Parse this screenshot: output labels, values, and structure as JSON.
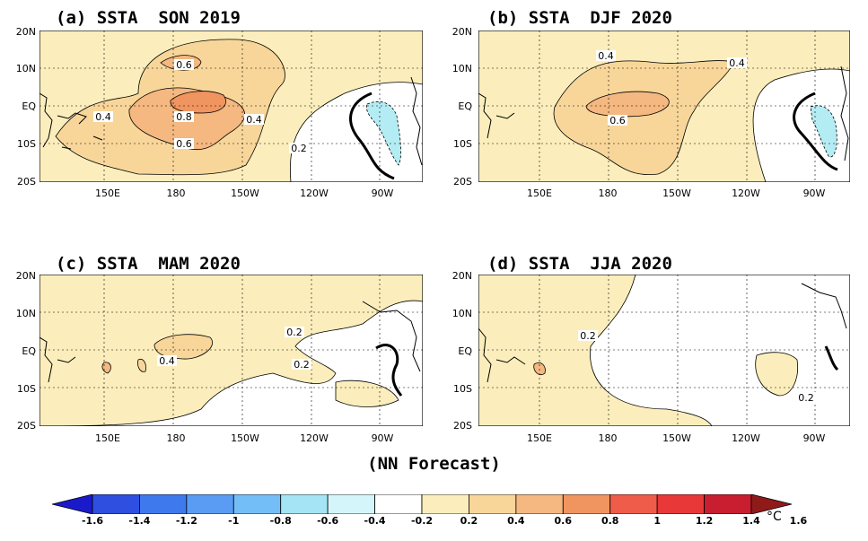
{
  "panels": [
    {
      "title": "(a) SSTA  SON 2019",
      "contour_labels": [
        "0.6",
        "0.8",
        "0.6",
        "0.4",
        "0.4",
        "0.2"
      ]
    },
    {
      "title": "(b) SSTA  DJF 2020",
      "contour_labels": [
        "0.4",
        "0.4",
        "0.6"
      ]
    },
    {
      "title": "(c) SSTA  MAM 2020",
      "contour_labels": [
        "0.2",
        "0.4",
        "0.2"
      ]
    },
    {
      "title": "(d) SSTA  JJA 2020",
      "contour_labels": [
        "0.2",
        "0.2"
      ]
    }
  ],
  "lat_labels": [
    "20N",
    "10N",
    "EQ",
    "10S",
    "20S"
  ],
  "lon_labels": [
    "150E",
    "180",
    "150W",
    "120W",
    "90W"
  ],
  "footer": "(NN Forecast)",
  "colorbar": {
    "unit": "°C",
    "tick_labels": [
      "-1.6",
      "-1.4",
      "-1.2",
      "-1",
      "-0.8",
      "-0.6",
      "-0.4",
      "-0.2",
      "0.2",
      "0.4",
      "0.6",
      "0.8",
      "1",
      "1.2",
      "1.4",
      "1.6"
    ],
    "colors": [
      "#1a1acc",
      "#2e4fe0",
      "#3f79ee",
      "#5a9cf4",
      "#74bef8",
      "#a4e4f4",
      "#d4f6fa",
      "#ffffff",
      "#fbeebc",
      "#f8d69a",
      "#f4b880",
      "#f09460",
      "#f05c4a",
      "#e83838",
      "#c81e30",
      "#901a1a"
    ]
  },
  "palette": {
    "p02": "#fbeebc",
    "p04": "#f8d69a",
    "p06": "#f4b880",
    "p08": "#f09460",
    "neg02": "#b4ecf4"
  }
}
